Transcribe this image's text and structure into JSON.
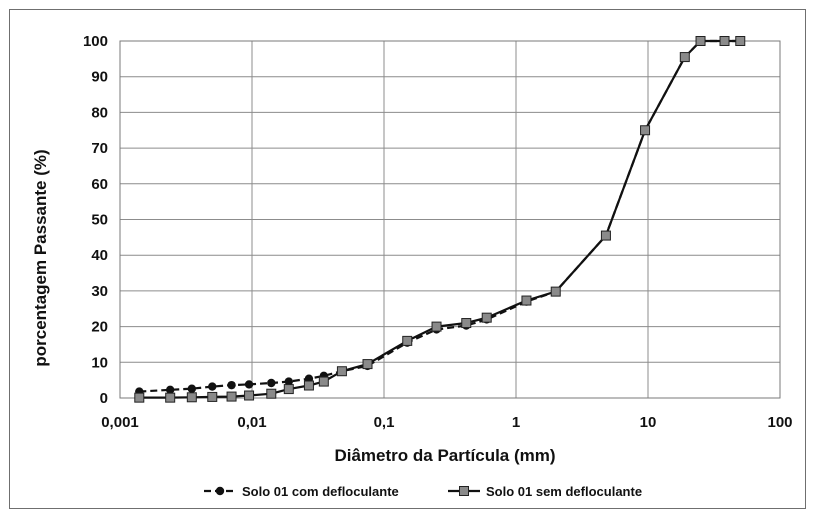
{
  "chart_data": {
    "type": "line",
    "title": "",
    "xlabel": "Diâmetro da Partícula (mm)",
    "ylabel": "porcentagem Passante (%)",
    "xscale": "log",
    "xlim": [
      0.001,
      100
    ],
    "ylim": [
      0,
      100
    ],
    "x_ticks": [
      "0,001",
      "0,01",
      "0,1",
      "1",
      "10",
      "100"
    ],
    "y_ticks": [
      "0",
      "10",
      "20",
      "30",
      "40",
      "50",
      "60",
      "70",
      "80",
      "90",
      "100"
    ],
    "grid": true,
    "legend_position": "bottom",
    "series": [
      {
        "name": "Solo 01 com defloculante",
        "marker": "circle",
        "line": "dashed",
        "color": "#111111",
        "points": [
          [
            0.0014,
            1.8
          ],
          [
            0.0024,
            2.3
          ],
          [
            0.0035,
            2.6
          ],
          [
            0.005,
            3.2
          ],
          [
            0.007,
            3.6
          ],
          [
            0.0095,
            3.8
          ],
          [
            0.014,
            4.2
          ],
          [
            0.019,
            4.6
          ],
          [
            0.027,
            5.4
          ],
          [
            0.035,
            6.2
          ],
          [
            0.048,
            7.5
          ],
          [
            0.075,
            9.0
          ],
          [
            0.15,
            15.5
          ],
          [
            0.25,
            19.2
          ],
          [
            0.42,
            20.3
          ],
          [
            0.6,
            22.0
          ],
          [
            1.2,
            27.0
          ],
          [
            2.0,
            29.8
          ],
          [
            4.8,
            45.5
          ],
          [
            9.5,
            75.0
          ],
          [
            19.0,
            95.5
          ],
          [
            25.0,
            100
          ],
          [
            38.0,
            100
          ],
          [
            50.0,
            100
          ]
        ]
      },
      {
        "name": "Solo 01 sem defloculante",
        "marker": "square",
        "line": "solid",
        "color": "#111111",
        "points": [
          [
            0.0014,
            0.1
          ],
          [
            0.0024,
            0.1
          ],
          [
            0.0035,
            0.2
          ],
          [
            0.005,
            0.3
          ],
          [
            0.007,
            0.4
          ],
          [
            0.0095,
            0.7
          ],
          [
            0.014,
            1.2
          ],
          [
            0.019,
            2.5
          ],
          [
            0.027,
            3.5
          ],
          [
            0.035,
            4.6
          ],
          [
            0.048,
            7.5
          ],
          [
            0.075,
            9.5
          ],
          [
            0.15,
            16.0
          ],
          [
            0.25,
            20.0
          ],
          [
            0.42,
            21.0
          ],
          [
            0.6,
            22.5
          ],
          [
            1.2,
            27.3
          ],
          [
            2.0,
            29.8
          ],
          [
            4.8,
            45.5
          ],
          [
            9.5,
            75.0
          ],
          [
            19.0,
            95.5
          ],
          [
            25.0,
            100
          ],
          [
            38.0,
            100
          ],
          [
            50.0,
            100
          ]
        ]
      }
    ]
  }
}
